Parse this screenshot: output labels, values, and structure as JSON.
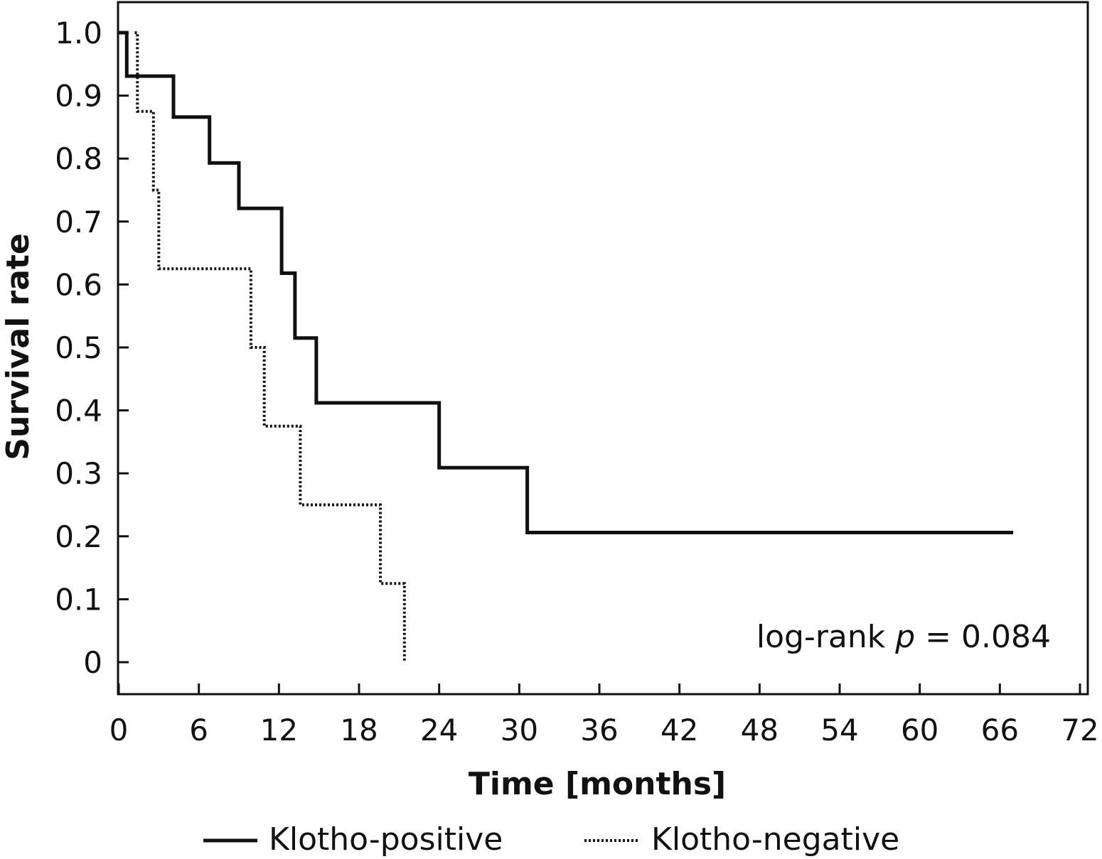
{
  "chart_data": {
    "type": "line",
    "step": true,
    "xlabel": "Time [months]",
    "ylabel": "Survival rate",
    "xlim": [
      0,
      72
    ],
    "ylim": [
      0,
      1.0
    ],
    "x_ticks": [
      "0",
      "6",
      "12",
      "18",
      "24",
      "30",
      "36",
      "42",
      "48",
      "54",
      "60",
      "66",
      "72"
    ],
    "x_tick_values": [
      0,
      6,
      12,
      18,
      24,
      30,
      36,
      42,
      48,
      54,
      60,
      66,
      72
    ],
    "y_ticks": [
      "0",
      "0.1",
      "0.2",
      "0.3",
      "0.4",
      "0.5",
      "0.6",
      "0.7",
      "0.8",
      "0.9",
      "1.0"
    ],
    "y_tick_values": [
      0,
      0.1,
      0.2,
      0.3,
      0.4,
      0.5,
      0.6,
      0.7,
      0.8,
      0.9,
      1.0
    ],
    "grid": false,
    "legend_position": "bottom",
    "annotation": {
      "prefix": "log-rank ",
      "italic": "p",
      "suffix": " = 0.084"
    },
    "series": [
      {
        "name": "Klotho-positive",
        "style": "solid",
        "color": "#111111",
        "x": [
          0,
          0.6,
          4.1,
          6.8,
          9.0,
          12.2,
          13.2,
          14.8,
          24.0,
          30.6,
          67.0
        ],
        "y": [
          1.0,
          0.931,
          0.866,
          0.793,
          0.721,
          0.618,
          0.515,
          0.412,
          0.309,
          0.206,
          0.206
        ]
      },
      {
        "name": "Klotho-negative",
        "style": "dotted",
        "color": "#111111",
        "x": [
          1.2,
          1.4,
          2.6,
          3.0,
          9.9,
          10.9,
          13.6,
          19.6,
          21.4,
          21.4
        ],
        "y": [
          1.0,
          0.875,
          0.75,
          0.625,
          0.5,
          0.375,
          0.25,
          0.125,
          0.125,
          0.0
        ]
      }
    ]
  }
}
